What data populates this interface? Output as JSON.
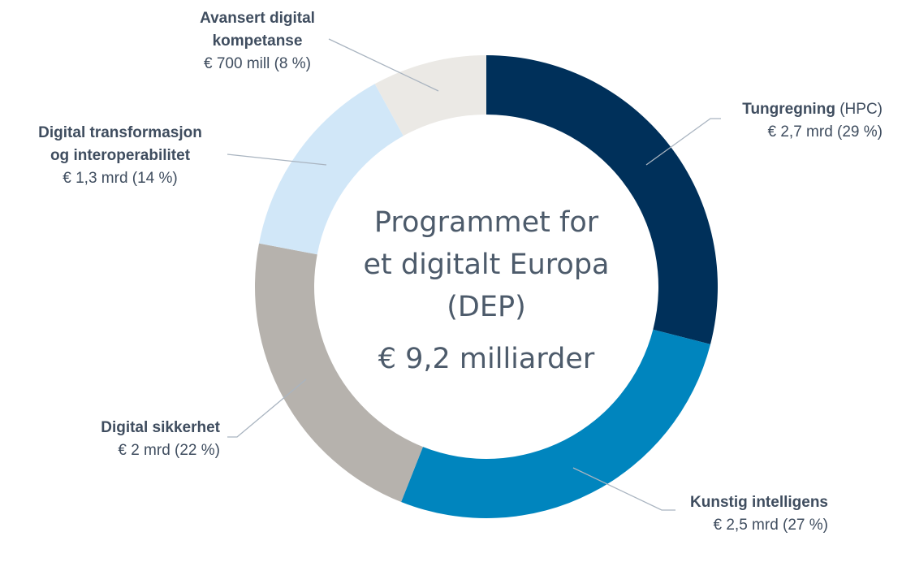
{
  "chart_data": {
    "type": "pie",
    "variant": "donut",
    "center_title_lines": [
      "Programmet for",
      "et digitalt Europa",
      "(DEP)"
    ],
    "center_total": "€ 9,2 milliarder",
    "total_value": 9.2,
    "unit": "mrd €",
    "slices": [
      {
        "name_lines": [
          "Tungregning"
        ],
        "name_suffix": " (HPC)",
        "value_text": "€ 2,7 mrd (29 %)",
        "value": 2.7,
        "percent": 29,
        "color": "#00305a"
      },
      {
        "name_lines": [
          "Kunstig intelligens"
        ],
        "name_suffix": "",
        "value_text": "€ 2,5 mrd (27 %)",
        "value": 2.5,
        "percent": 27,
        "color": "#0085be"
      },
      {
        "name_lines": [
          "Digital sikkerhet"
        ],
        "name_suffix": "",
        "value_text": "€ 2 mrd (22 %)",
        "value": 2.0,
        "percent": 22,
        "color": "#b6b2ad"
      },
      {
        "name_lines": [
          "Digital transformasjon",
          "og interoperabilitet"
        ],
        "name_suffix": "",
        "value_text": "€ 1,3 mrd (14 %)",
        "value": 1.3,
        "percent": 14,
        "color": "#d1e7f8"
      },
      {
        "name_lines": [
          "Avansert digital",
          "kompetanse"
        ],
        "name_suffix": "",
        "value_text": "€ 700 mill (8 %)",
        "value": 0.7,
        "percent": 8,
        "color": "#ebe9e5"
      }
    ]
  }
}
